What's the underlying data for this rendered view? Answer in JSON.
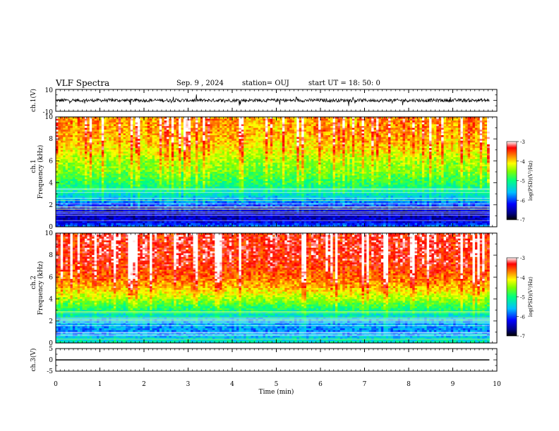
{
  "header": {
    "title": "VLF Spectra",
    "date": "Sep. 9 , 2024",
    "station": "station= OUJ",
    "start": "start UT = 18: 50: 0"
  },
  "chart_data": [
    {
      "type": "line",
      "panel": "ch1-waveform",
      "ylabel": "ch.1(V)",
      "ylim": [
        -10,
        10
      ],
      "yticklabels": [
        "10",
        "-10"
      ],
      "x_range_min": [
        0,
        9.83
      ],
      "baseline_v": 0,
      "amplitude_v": 3,
      "note_series": "noisy waveform around 0 V with spikes"
    },
    {
      "type": "heatmap",
      "panel": "ch1-spectrogram",
      "ylabel_top": "ch.1",
      "ylabel": "Frequency (kHz)",
      "ylim": [
        0,
        10
      ],
      "yticklabels": [
        "10",
        "8",
        "6",
        "4",
        "2",
        "0"
      ],
      "colorbar": {
        "label": "log(PSD)(V²/Hz)",
        "range": [
          -7,
          -3
        ],
        "ticklabels": [
          "-3",
          "-4",
          "-5",
          "-6",
          "-7"
        ]
      },
      "level_profile": [
        {
          "freq_khz": 0,
          "log_psd": -5.8
        },
        {
          "freq_khz": 0.5,
          "log_psd": -6.4
        },
        {
          "freq_khz": 1.0,
          "log_psd": -6.5
        },
        {
          "freq_khz": 1.5,
          "log_psd": -6.3
        },
        {
          "freq_khz": 2.0,
          "log_psd": -6.0
        },
        {
          "freq_khz": 2.5,
          "log_psd": -5.6
        },
        {
          "freq_khz": 3.0,
          "log_psd": -5.3
        },
        {
          "freq_khz": 4.0,
          "log_psd": -4.9
        },
        {
          "freq_khz": 5.0,
          "log_psd": -4.6
        },
        {
          "freq_khz": 6.0,
          "log_psd": -4.4
        },
        {
          "freq_khz": 7.0,
          "log_psd": -4.1
        },
        {
          "freq_khz": 8.0,
          "log_psd": -3.9
        },
        {
          "freq_khz": 9.0,
          "log_psd": -3.8
        },
        {
          "freq_khz": 10.0,
          "log_psd": -3.8
        }
      ]
    },
    {
      "type": "heatmap",
      "panel": "ch2-spectrogram",
      "ylabel_top": "ch.2",
      "ylabel": "Frequency (kHz)",
      "ylim": [
        0,
        10
      ],
      "yticklabels": [
        "10",
        "8",
        "6",
        "4",
        "2",
        "0"
      ],
      "colorbar": {
        "label": "log(PSD)(V²/Hz)",
        "range": [
          -7,
          -3
        ],
        "ticklabels": [
          "-3",
          "-4",
          "-5",
          "-6",
          "-7"
        ]
      },
      "level_profile": [
        {
          "freq_khz": 0,
          "log_psd": -5.2
        },
        {
          "freq_khz": 1.0,
          "log_psd": -5.8
        },
        {
          "freq_khz": 2.0,
          "log_psd": -5.6
        },
        {
          "freq_khz": 3.0,
          "log_psd": -5.0
        },
        {
          "freq_khz": 4.0,
          "log_psd": -4.4
        },
        {
          "freq_khz": 5.0,
          "log_psd": -3.9
        },
        {
          "freq_khz": 6.0,
          "log_psd": -3.6
        },
        {
          "freq_khz": 7.0,
          "log_psd": -3.4
        },
        {
          "freq_khz": 8.0,
          "log_psd": -3.3
        },
        {
          "freq_khz": 9.0,
          "log_psd": -3.3
        },
        {
          "freq_khz": 10.0,
          "log_psd": -3.3
        }
      ]
    },
    {
      "type": "line",
      "panel": "ch3-waveform",
      "ylabel": "ch.3(V)",
      "ylim": [
        -5,
        5
      ],
      "yticklabels": [
        "5",
        "0",
        "-5"
      ],
      "x": [
        0,
        9.83
      ],
      "y": [
        0,
        0
      ]
    }
  ],
  "xaxis": {
    "label": "Time (min)",
    "ticklabels": [
      "0",
      "1",
      "2",
      "3",
      "4",
      "5",
      "6",
      "7",
      "8",
      "9",
      "10"
    ],
    "range": [
      0,
      10
    ]
  },
  "colors": {
    "colormap": [
      "#000080",
      "#0000ff",
      "#00c0ff",
      "#00ff80",
      "#80ff00",
      "#ffff00",
      "#ff8000",
      "#ff0000",
      "#ffffff"
    ],
    "trace": "#000000"
  }
}
